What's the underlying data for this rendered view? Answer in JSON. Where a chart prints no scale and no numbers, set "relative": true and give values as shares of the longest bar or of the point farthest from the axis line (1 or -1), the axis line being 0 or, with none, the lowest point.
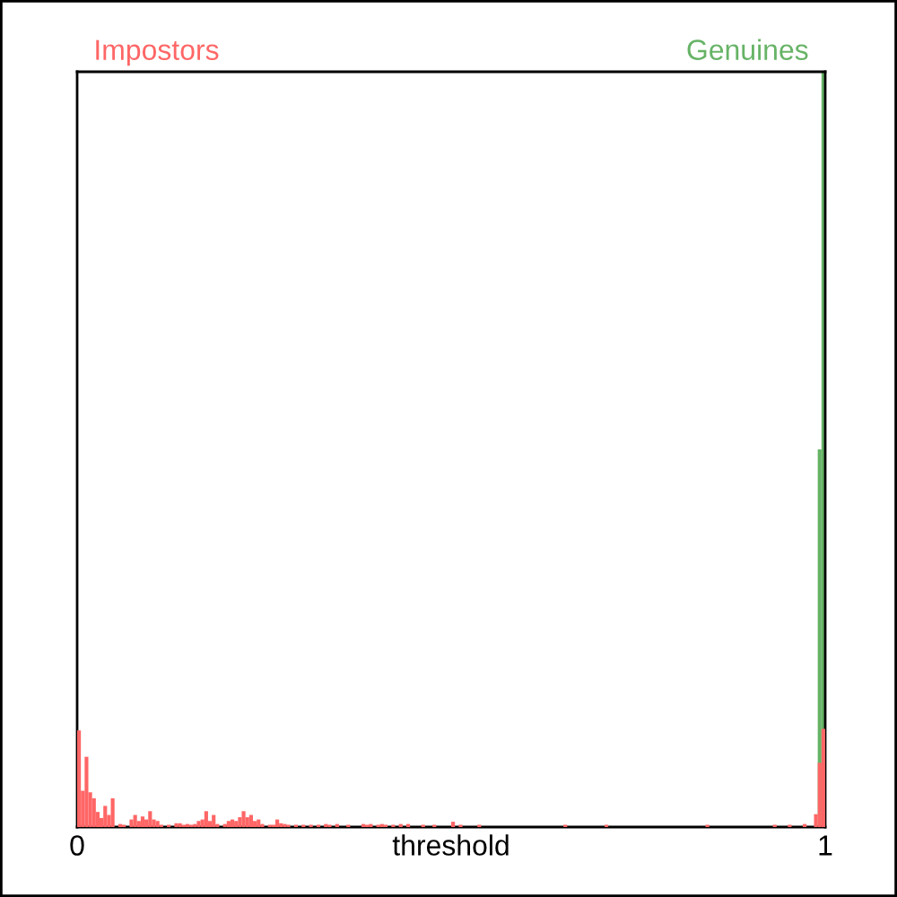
{
  "chart_data": {
    "type": "bar",
    "xlabel": "threshold",
    "relative": true,
    "xlim": [
      0,
      1
    ],
    "xticks": [
      0,
      1
    ],
    "x": [
      0.0025,
      0.0075,
      0.0125,
      0.0175,
      0.0225,
      0.0275,
      0.0325,
      0.0375,
      0.0425,
      0.0475,
      0.0525,
      0.0575,
      0.0625,
      0.0675,
      0.0725,
      0.0775,
      0.0825,
      0.0875,
      0.0925,
      0.0975,
      0.1025,
      0.1075,
      0.1125,
      0.1175,
      0.1225,
      0.1275,
      0.1325,
      0.1375,
      0.1425,
      0.1475,
      0.1525,
      0.1575,
      0.1625,
      0.1675,
      0.1725,
      0.1775,
      0.1825,
      0.1875,
      0.1925,
      0.1975,
      0.2025,
      0.2075,
      0.2125,
      0.2175,
      0.2225,
      0.2275,
      0.2325,
      0.2375,
      0.2425,
      0.2475,
      0.2525,
      0.2575,
      0.2625,
      0.2675,
      0.2725,
      0.2775,
      0.2825,
      0.2875,
      0.2925,
      0.2975,
      0.3025,
      0.3075,
      0.3125,
      0.3175,
      0.3225,
      0.3275,
      0.3325,
      0.3375,
      0.3425,
      0.3475,
      0.3525,
      0.3575,
      0.3625,
      0.3675,
      0.3725,
      0.3775,
      0.3825,
      0.3875,
      0.3925,
      0.3975,
      0.4025,
      0.4075,
      0.4125,
      0.4175,
      0.4225,
      0.4275,
      0.4325,
      0.4375,
      0.4425,
      0.4475,
      0.4525,
      0.4575,
      0.4625,
      0.4675,
      0.4725,
      0.4775,
      0.4825,
      0.4875,
      0.4925,
      0.4975,
      0.5025,
      0.5075,
      0.5125,
      0.5175,
      0.5225,
      0.5275,
      0.5325,
      0.5375,
      0.5425,
      0.5475,
      0.5525,
      0.5575,
      0.5625,
      0.5675,
      0.5725,
      0.5775,
      0.5825,
      0.5875,
      0.5925,
      0.5975,
      0.6025,
      0.6075,
      0.6125,
      0.6175,
      0.6225,
      0.6275,
      0.6325,
      0.6375,
      0.6425,
      0.6475,
      0.6525,
      0.6575,
      0.6625,
      0.6675,
      0.6725,
      0.6775,
      0.6825,
      0.6875,
      0.6925,
      0.6975,
      0.7025,
      0.7075,
      0.7125,
      0.7175,
      0.7225,
      0.7275,
      0.7325,
      0.7375,
      0.7425,
      0.7475,
      0.7525,
      0.7575,
      0.7625,
      0.7675,
      0.7725,
      0.7775,
      0.7825,
      0.7875,
      0.7925,
      0.7975,
      0.8025,
      0.8075,
      0.8125,
      0.8175,
      0.8225,
      0.8275,
      0.8325,
      0.8375,
      0.8425,
      0.8475,
      0.8525,
      0.8575,
      0.8625,
      0.8675,
      0.8725,
      0.8775,
      0.8825,
      0.8875,
      0.8925,
      0.8975,
      0.9025,
      0.9075,
      0.9125,
      0.9175,
      0.9225,
      0.9275,
      0.9325,
      0.9375,
      0.9425,
      0.9475,
      0.9525,
      0.9575,
      0.9625,
      0.9675,
      0.9725,
      0.9775,
      0.9825,
      0.9875,
      0.9925,
      0.9975
    ],
    "series": [
      {
        "name": "Impostors",
        "color": "#ff6666",
        "values": [
          0.128,
          0.048,
          0.093,
          0.046,
          0.038,
          0.02,
          0.012,
          0.028,
          0.016,
          0.038,
          0,
          0.004,
          0.003,
          0,
          0.01,
          0.016,
          0.008,
          0.014,
          0.01,
          0.021,
          0.01,
          0.008,
          0.003,
          0,
          0.003,
          0,
          0.005,
          0.005,
          0.003,
          0.004,
          0.003,
          0.004,
          0.008,
          0.01,
          0.021,
          0.008,
          0.016,
          0.004,
          0,
          0.004,
          0.008,
          0.01,
          0.008,
          0.013,
          0.021,
          0.013,
          0.016,
          0.008,
          0.01,
          0.004,
          0,
          0.003,
          0.003,
          0.01,
          0.005,
          0.004,
          0.003,
          0,
          0.003,
          0,
          0.003,
          0,
          0.003,
          0,
          0.003,
          0,
          0.004,
          0.003,
          0,
          0.004,
          0,
          0,
          0.003,
          0,
          0,
          0,
          0.004,
          0.003,
          0.004,
          0,
          0.003,
          0.004,
          0.003,
          0,
          0.003,
          0,
          0.004,
          0,
          0.004,
          0,
          0,
          0,
          0.003,
          0,
          0,
          0.003,
          0,
          0,
          0,
          0,
          0.007,
          0,
          0.003,
          0,
          0,
          0,
          0,
          0.003,
          0,
          0,
          0,
          0,
          0,
          0,
          0,
          0,
          0,
          0,
          0,
          0,
          0,
          0,
          0,
          0,
          0,
          0,
          0,
          0,
          0,
          0,
          0.003,
          0,
          0,
          0,
          0,
          0,
          0,
          0,
          0,
          0,
          0,
          0.003,
          0,
          0,
          0,
          0,
          0,
          0,
          0,
          0,
          0,
          0,
          0,
          0,
          0,
          0,
          0,
          0,
          0,
          0,
          0,
          0,
          0,
          0,
          0,
          0,
          0,
          0,
          0.003,
          0,
          0,
          0,
          0,
          0,
          0,
          0,
          0,
          0,
          0,
          0,
          0,
          0,
          0,
          0,
          0,
          0,
          0.003,
          0,
          0,
          0,
          0.003,
          0,
          0,
          0,
          0.004,
          0,
          0,
          0.017,
          0.085,
          0.13
        ]
      },
      {
        "name": "Genuines",
        "color": "#66b366",
        "values": [
          0,
          0,
          0,
          0,
          0,
          0,
          0,
          0,
          0,
          0,
          0,
          0,
          0,
          0,
          0,
          0,
          0,
          0,
          0,
          0,
          0,
          0,
          0,
          0,
          0,
          0,
          0,
          0,
          0,
          0,
          0,
          0,
          0,
          0,
          0,
          0,
          0,
          0,
          0,
          0,
          0,
          0,
          0,
          0,
          0,
          0,
          0,
          0,
          0,
          0,
          0,
          0,
          0,
          0,
          0,
          0,
          0,
          0,
          0,
          0,
          0,
          0,
          0,
          0,
          0,
          0,
          0,
          0,
          0,
          0,
          0,
          0,
          0,
          0,
          0,
          0,
          0,
          0,
          0,
          0,
          0,
          0,
          0,
          0,
          0,
          0,
          0,
          0,
          0,
          0,
          0,
          0,
          0,
          0,
          0,
          0,
          0,
          0,
          0,
          0,
          0,
          0,
          0,
          0,
          0,
          0,
          0,
          0,
          0,
          0,
          0,
          0,
          0,
          0,
          0,
          0,
          0,
          0,
          0,
          0,
          0,
          0,
          0,
          0,
          0,
          0,
          0,
          0,
          0,
          0,
          0,
          0,
          0,
          0,
          0,
          0,
          0,
          0,
          0,
          0,
          0,
          0,
          0,
          0,
          0,
          0,
          0,
          0,
          0,
          0,
          0,
          0,
          0,
          0,
          0,
          0,
          0,
          0,
          0,
          0,
          0,
          0,
          0,
          0,
          0,
          0,
          0,
          0,
          0,
          0,
          0,
          0,
          0,
          0,
          0,
          0,
          0,
          0,
          0,
          0,
          0,
          0,
          0,
          0,
          0,
          0,
          0,
          0,
          0,
          0,
          0,
          0,
          0,
          0,
          0,
          0,
          0,
          0,
          0.5,
          1
        ]
      }
    ]
  }
}
